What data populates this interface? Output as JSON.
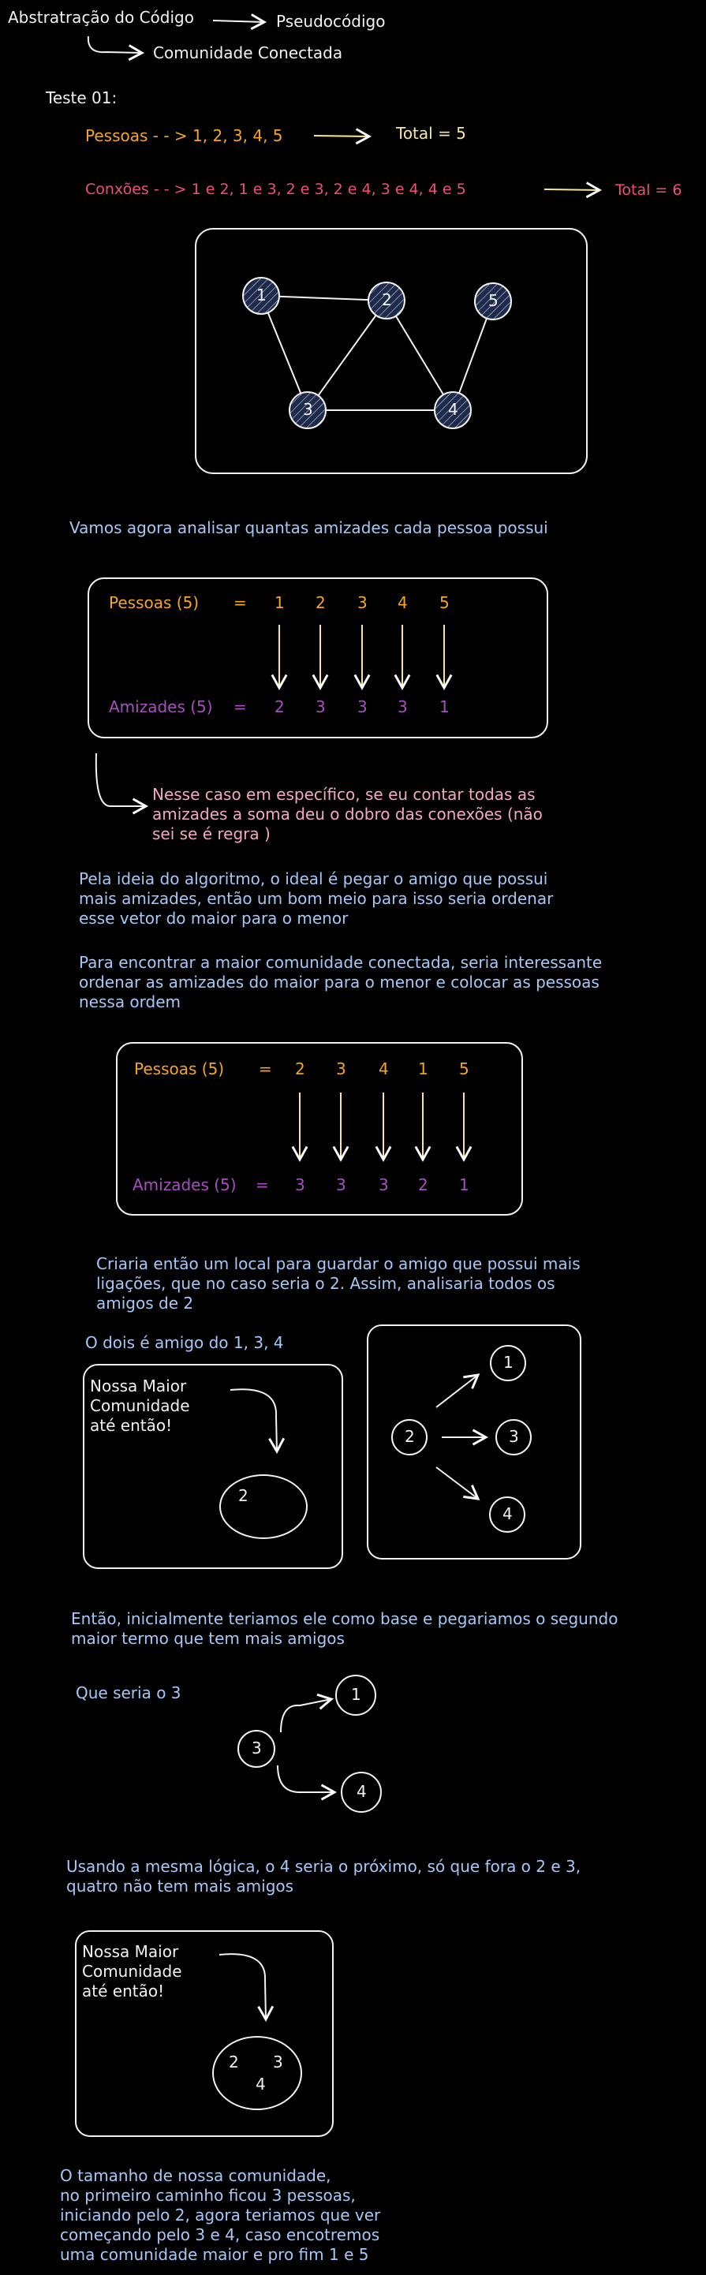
{
  "header": {
    "title": "Abstratração do Código",
    "branch1": "Pseudocódigo",
    "branch2": "Comunidade Conectada"
  },
  "teste": {
    "label": "Teste 01:",
    "pessoas_line": "Pessoas - - > 1, 2, 3, 4, 5",
    "pessoas_total": "Total = 5",
    "conexoes_line": "Conxões - - > 1 e 2, 1 e 3, 2 e 3, 2 e 4, 3 e 4, 4 e 5",
    "conexoes_total": "Total = 6"
  },
  "graph1": {
    "nodes": [
      "1",
      "2",
      "3",
      "4",
      "5"
    ]
  },
  "analysis_title": "Vamos agora analisar quantas amizades cada pessoa possui",
  "table1": {
    "pessoas_label": "Pessoas (5)",
    "amizades_label": "Amizades (5)",
    "eq": "=",
    "pessoas": [
      "1",
      "2",
      "3",
      "4",
      "5"
    ],
    "amizades": [
      "2",
      "3",
      "3",
      "3",
      "1"
    ]
  },
  "note1": [
    "Nesse caso em específico, se eu contar todas as",
    "amizades a soma deu o dobro das conexões (não",
    "sei se é regra )"
  ],
  "para1": [
    "Pela ideia do algoritmo, o ideal é pegar o amigo que possui",
    "mais amizades, então um bom meio para isso seria ordenar",
    "esse vetor do maior para o menor"
  ],
  "para2": [
    "Para encontrar a maior comunidade conectada, seria interessante",
    "ordenar as amizades do maior para o menor e colocar as pessoas",
    "nessa ordem"
  ],
  "table2": {
    "pessoas_label": "Pessoas (5)",
    "amizades_label": "Amizades (5)",
    "eq": "=",
    "pessoas": [
      "2",
      "3",
      "4",
      "1",
      "5"
    ],
    "amizades": [
      "3",
      "3",
      "3",
      "2",
      "1"
    ]
  },
  "para3": [
    "Criaria então um local para guardar o amigo que possui mais",
    "ligações, que no caso seria o 2. Assim, analisaria todos os",
    "amigos de 2"
  ],
  "dois_title": "O dois é amigo do 1, 3, 4",
  "box_a": {
    "caption": [
      "Nossa Maior",
      "Comunidade",
      "até então!"
    ],
    "members": "2"
  },
  "box_b": {
    "center": "2",
    "targets": [
      "1",
      "3",
      "4"
    ]
  },
  "para4": [
    "Então, inicialmente teriamos ele como base e pegariamos o segundo",
    "maior termo que tem mais amigos"
  ],
  "que_seria": "Que seria o 3",
  "tree3": {
    "root": "3",
    "children": [
      "1",
      "4"
    ]
  },
  "para5": [
    "Usando a mesma lógica, o 4 seria o próximo, só que fora o 2 e 3,",
    "quatro não tem mais amigos"
  ],
  "box_c": {
    "caption": [
      "Nossa Maior",
      "Comunidade",
      "até então!"
    ],
    "members": [
      "2",
      "3",
      "4"
    ]
  },
  "final": [
    "O tamanho de nossa comunidade,",
    "no primeiro caminho ficou 3 pessoas,",
    "iniciando pelo 2, agora teriamos que ver",
    "começando pelo 3 e 4, caso encotremos",
    "uma comunidade maior e pro fim 1 e 5"
  ],
  "colors": {
    "background": "#000000",
    "white": "#f2f2f2",
    "orange": "#f5a623",
    "pink": "#ef4f74",
    "blue": "#a6c8f7",
    "purple": "#a64fbf",
    "node_hatch": "#1e2a4a"
  }
}
